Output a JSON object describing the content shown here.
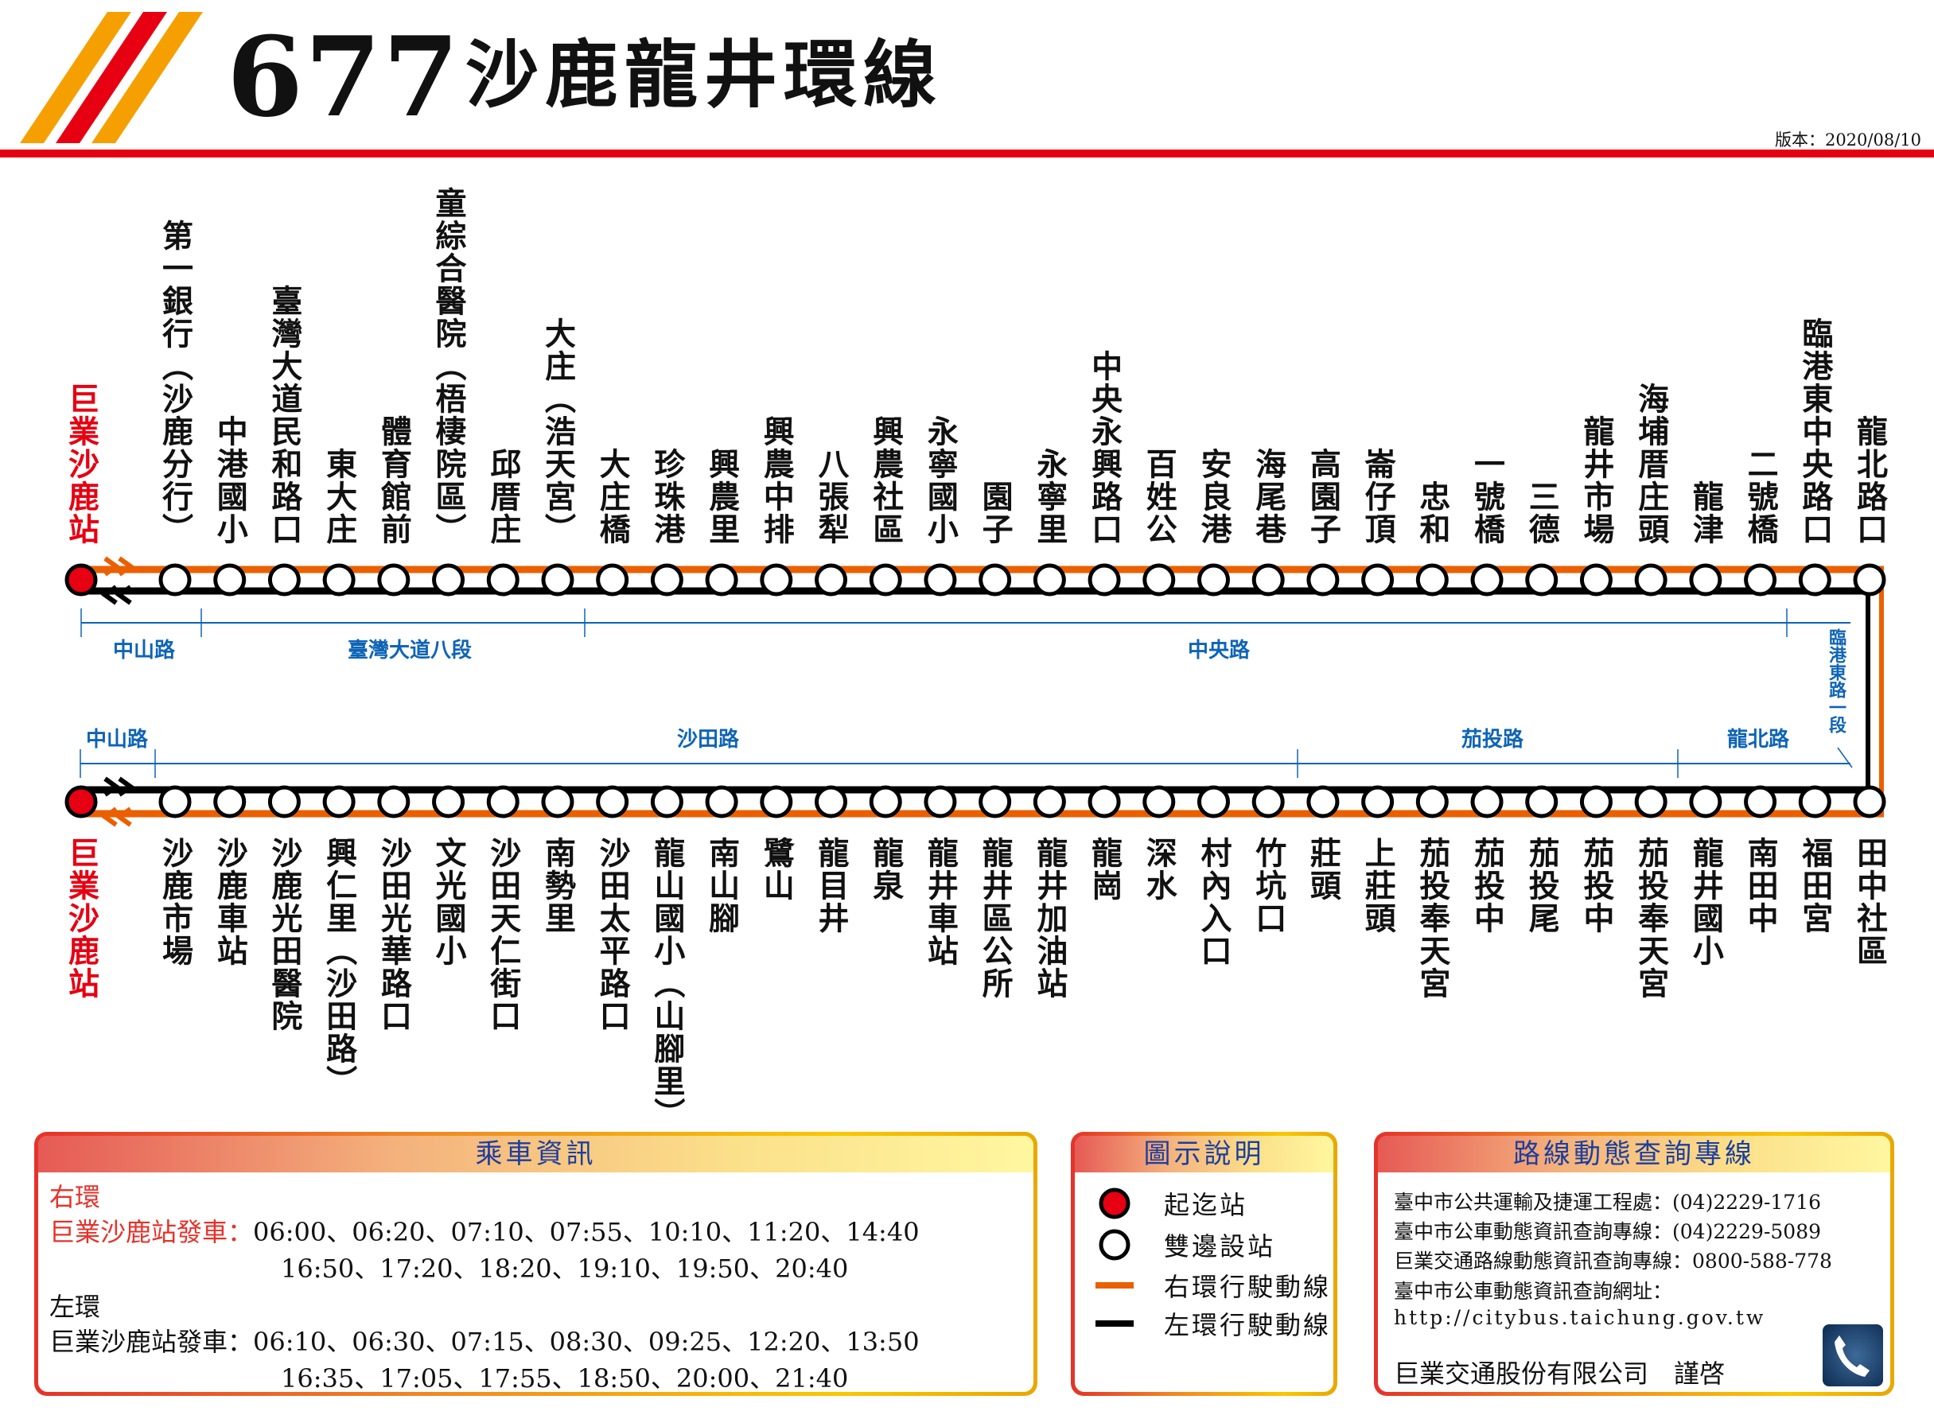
{
  "header": {
    "route_number": "677",
    "route_name": "沙鹿龍井環線",
    "version": "版本：2020/08/10",
    "logo_colors": [
      "#f5a000",
      "#e60012",
      "#f5a000"
    ],
    "rule_color": "#e60012"
  },
  "colors": {
    "right_loop": "#ea6000",
    "left_loop": "#000000",
    "origin": "#e60012",
    "road": "#0e64b5"
  },
  "origin_station": "巨業沙鹿站",
  "outbound_stations": [
    "第一銀行（沙鹿分行）",
    "中港國小",
    "臺灣大道民和路口",
    "東大庄",
    "體育館前",
    "童綜合醫院（梧棲院區）",
    "邱厝庄",
    "大庄（浩天宮）",
    "大庄橋",
    "珍珠港",
    "興農里",
    "興農中排",
    "八張犁",
    "興農社區",
    "永寧國小",
    "園子",
    "永寧里",
    "中央永興路口",
    "百姓公",
    "安良港",
    "海尾巷",
    "高園子",
    "崙仔頂",
    "忠和",
    "一號橋",
    "三德",
    "龍井市場",
    "海埔厝庄頭",
    "龍津",
    "二號橋",
    "臨港東中央路口",
    "龍北路口"
  ],
  "return_stations": [
    "沙鹿市場",
    "沙鹿車站",
    "沙鹿光田醫院",
    "興仁里（沙田路）",
    "沙田光華路口",
    "文光國小",
    "沙田天仁街口",
    "南勢里",
    "沙田太平路口",
    "龍山國小（山腳里）",
    "南山腳",
    "鷺山",
    "龍目井",
    "龍泉",
    "龍井車站",
    "龍井區公所",
    "龍井加油站",
    "龍崗",
    "深水",
    "村內入口",
    "竹坑口",
    "莊頭",
    "上莊頭",
    "茄投奉天宮",
    "茄投中",
    "茄投尾",
    "茄投中",
    "茄投奉天宮",
    "龍井國小",
    "南田中",
    "福田宮",
    "田中社區"
  ],
  "roads_top": [
    "中山路",
    "臺灣大道八段",
    "中央路"
  ],
  "road_side": "臨港東路一段",
  "roads_bottom": [
    "中山路",
    "沙田路",
    "茄投路",
    "龍北路"
  ],
  "schedule": {
    "title": "乘車資訊",
    "right_loop_label": "右環",
    "right_depart_label": "巨業沙鹿站發車：",
    "right_times_1": "06:00、06:20、07:10、07:55、10:10、11:20、14:40",
    "right_times_2": "16:50、17:20、18:20、19:10、19:50、20:40",
    "left_loop_label": "左環",
    "left_depart_label": "巨業沙鹿站發車：",
    "left_times_1": "06:10、06:30、07:15、08:30、09:25、12:20、13:50",
    "left_times_2": "16:35、17:05、17:55、18:50、20:00、21:40"
  },
  "legend": {
    "title": "圖示說明",
    "items": [
      "起迄站",
      "雙邊設站",
      "右環行駛動線",
      "左環行駛動線"
    ]
  },
  "info": {
    "title": "路線動態查詢專線",
    "lines": [
      "臺中市公共運輸及捷運工程處：(04)2229-1716",
      "臺中市公車動態資訊查詢專線：(04)2229-5089",
      "巨業交通路線動態資訊查詢專線：0800-588-778",
      "臺中市公車動態資訊查詢網址：",
      "http://citybus.taichung.gov.tw"
    ],
    "signature": "巨業交通股份有限公司　謹啓",
    "phone_icon": "phone-icon"
  }
}
